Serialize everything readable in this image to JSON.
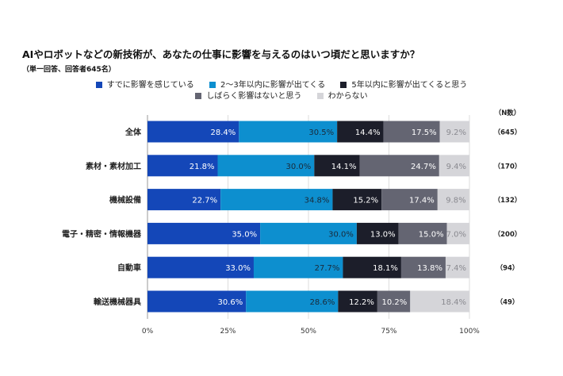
{
  "chart_data": {
    "type": "bar",
    "orientation": "horizontal-stacked-100",
    "title": "AIやロボットなどの新技術が、あなたの仕事に影響を与えるのはいつ頃だと思いますか？",
    "subtitle": "（単一回答、回答者645名）",
    "n_header": "（N数）",
    "categories": [
      "全体",
      "素材・素材加工",
      "機械設備",
      "電子・精密・情報機器",
      "自動車",
      "輸送機械器具"
    ],
    "n_labels": [
      "（645）",
      "（170）",
      "（132）",
      "（200）",
      "（94）",
      "（49）"
    ],
    "series": [
      {
        "name": "すでに影響を感じている",
        "color": "#1447b8",
        "label_color": "#ffffff",
        "values": [
          28.4,
          21.8,
          22.7,
          35.0,
          33.0,
          30.6
        ]
      },
      {
        "name": "2～3年以内に影響が出てくる",
        "color": "#0d8fcf",
        "label_color": "#1a2a3a",
        "values": [
          30.5,
          30.0,
          34.8,
          30.0,
          27.7,
          28.6
        ]
      },
      {
        "name": "5年以内に影響が出てくると思う",
        "color": "#1c1e2a",
        "label_color": "#ffffff",
        "values": [
          14.4,
          14.1,
          15.2,
          13.0,
          18.1,
          12.2
        ]
      },
      {
        "name": "しばらく影響はないと思う",
        "color": "#646572",
        "label_color": "#ffffff",
        "values": [
          17.5,
          24.7,
          17.4,
          15.0,
          13.8,
          10.2
        ]
      },
      {
        "name": "わからない",
        "color": "#d5d5d9",
        "label_color": "#8a8a90",
        "values": [
          9.2,
          9.4,
          9.8,
          7.0,
          7.4,
          18.4
        ]
      }
    ],
    "xlim": [
      0,
      100
    ],
    "xticks": [
      "0%",
      "25%",
      "50%",
      "75%",
      "100%"
    ],
    "grid": true,
    "legend_placement": "top"
  }
}
